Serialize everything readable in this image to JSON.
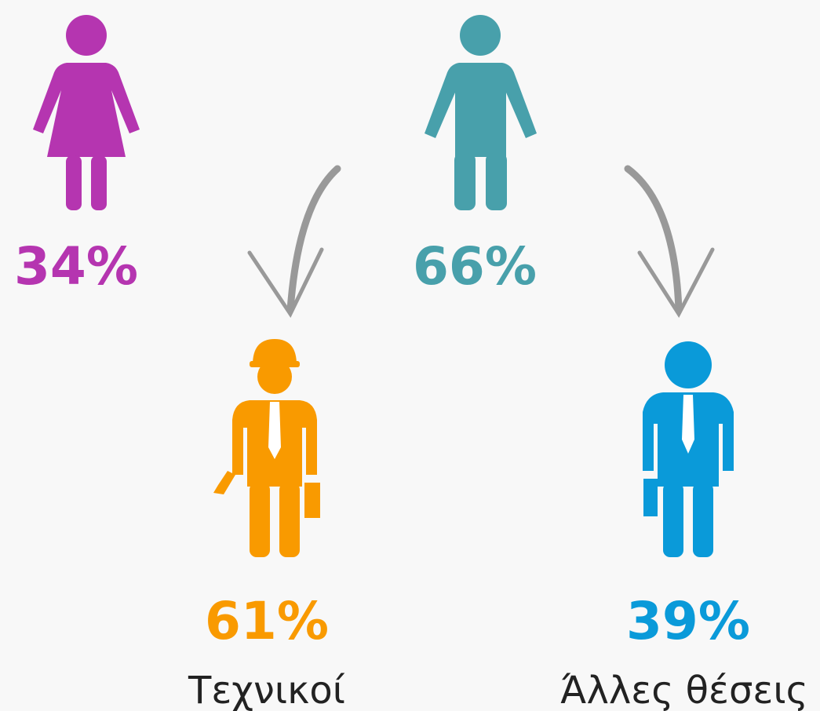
{
  "groups": [
    {
      "percent": "34%"
    },
    {
      "percent": "66%"
    }
  ],
  "subgroups": [
    {
      "percent": "61%",
      "label": "Τεχνικοί"
    },
    {
      "percent": "39%",
      "label": "Άλλες θέσεις"
    }
  ]
}
